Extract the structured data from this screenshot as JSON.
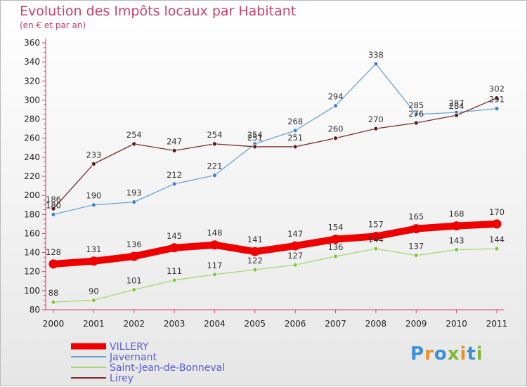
{
  "header": {
    "title": "Evolution des Impôts locaux par Habitant",
    "subtitle": "(en € et par an)"
  },
  "logo": {
    "text": "Proxiti"
  },
  "chart_data": {
    "type": "line",
    "x": [
      "2000",
      "2001",
      "2002",
      "2003",
      "2004",
      "2005",
      "2006",
      "2007",
      "2008",
      "2009",
      "2010",
      "2011"
    ],
    "ylim": [
      80,
      360
    ],
    "yticks": [
      80,
      100,
      120,
      140,
      160,
      180,
      200,
      220,
      240,
      260,
      280,
      300,
      320,
      340,
      360
    ],
    "grid": false,
    "legend_position": "bottom-left",
    "series": [
      {
        "name": "VILLERY",
        "color": "#ee0000",
        "values": [
          128,
          131,
          136,
          145,
          148,
          141,
          147,
          154,
          157,
          165,
          168,
          170
        ]
      },
      {
        "name": "Javernant",
        "color": "#5b9bd5",
        "values": [
          180,
          190,
          193,
          212,
          221,
          254,
          268,
          294,
          338,
          285,
          287,
          291
        ]
      },
      {
        "name": "Saint-Jean-de-Bonneval",
        "color": "#92d050",
        "values": [
          88,
          90,
          101,
          111,
          117,
          122,
          127,
          136,
          144,
          137,
          143,
          144
        ]
      },
      {
        "name": "Lirey",
        "color": "#7b2c2c",
        "values": [
          186,
          233,
          254,
          247,
          254,
          251,
          251,
          260,
          270,
          276,
          284,
          302
        ]
      }
    ]
  }
}
